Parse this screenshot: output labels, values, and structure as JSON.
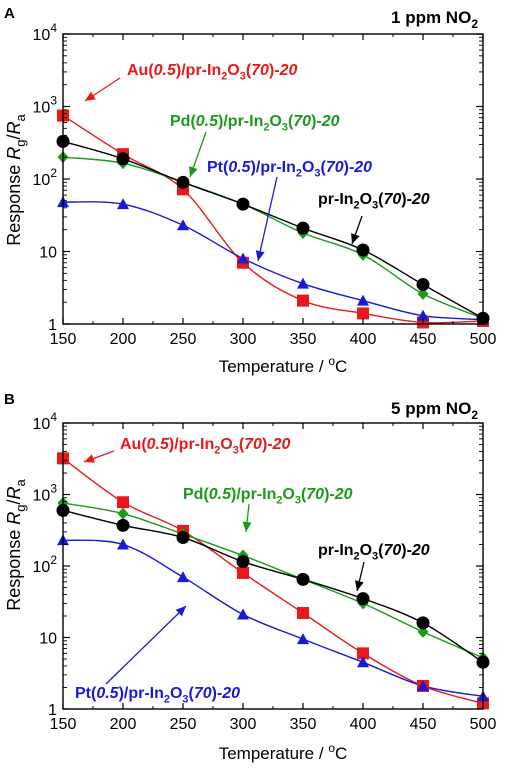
{
  "chart_data": [
    {
      "panel": "A",
      "type": "line",
      "title": "1 ppm NO",
      "title_sub": "2",
      "xlabel": "Temperature / ",
      "xlabel_sup": "o",
      "xlabel_tail": "C",
      "ylabel_main": "Response ",
      "ylabel_R1": "R",
      "ylabel_sub1": "g",
      "ylabel_slash": "/",
      "ylabel_R2": "R",
      "ylabel_sub2": "a",
      "xlim": [
        150,
        500
      ],
      "ylim": [
        1,
        10000
      ],
      "yscale": "log",
      "x": [
        150,
        200,
        250,
        300,
        350,
        400,
        450,
        500
      ],
      "x_ticks": [
        "150",
        "200",
        "250",
        "300",
        "350",
        "400",
        "450",
        "500"
      ],
      "y_ticks": [
        {
          "value": 1,
          "base": "1",
          "exp": ""
        },
        {
          "value": 10,
          "base": "10",
          "exp": ""
        },
        {
          "value": 100,
          "base": "10",
          "exp": "2"
        },
        {
          "value": 1000,
          "base": "10",
          "exp": "3"
        },
        {
          "value": 10000,
          "base": "10",
          "exp": "4"
        }
      ],
      "series": [
        {
          "color": "#e8191b",
          "marker": "square",
          "values": [
            750,
            220,
            72,
            7,
            2.1,
            1.4,
            1.05,
            1.1
          ],
          "label": [
            [
              "Au(",
              false,
              false
            ],
            [
              "0.5",
              true,
              false
            ],
            [
              ")/pr-In",
              false,
              false
            ],
            [
              "2",
              false,
              true
            ],
            [
              "O",
              false,
              false
            ],
            [
              "3",
              false,
              true
            ],
            [
              "(",
              false,
              false
            ],
            [
              "70",
              true,
              false
            ],
            [
              ")-",
              false,
              false
            ],
            [
              "20",
              true,
              false
            ]
          ]
        },
        {
          "color": "#1a9a1a",
          "marker": "diamond",
          "values": [
            200,
            165,
            90,
            45,
            18,
            9,
            2.6,
            1.2
          ],
          "label": [
            [
              "Pd(",
              false,
              false
            ],
            [
              "0.5",
              true,
              false
            ],
            [
              ")/pr-In",
              false,
              false
            ],
            [
              "2",
              false,
              true
            ],
            [
              "O",
              false,
              false
            ],
            [
              "3",
              false,
              true
            ],
            [
              "(",
              false,
              false
            ],
            [
              "70",
              true,
              false
            ],
            [
              ")-",
              false,
              false
            ],
            [
              "20",
              true,
              false
            ]
          ]
        },
        {
          "color": "#1a1ad6",
          "marker": "triangle",
          "values": [
            48,
            45,
            23,
            8,
            3.6,
            2.1,
            1.3,
            1.15
          ],
          "label": [
            [
              "Pt(",
              false,
              false
            ],
            [
              "0.5",
              true,
              false
            ],
            [
              ")/pr-In",
              false,
              false
            ],
            [
              "2",
              false,
              true
            ],
            [
              "O",
              false,
              false
            ],
            [
              "3",
              false,
              true
            ],
            [
              "(",
              false,
              false
            ],
            [
              "70",
              true,
              false
            ],
            [
              ")-",
              false,
              false
            ],
            [
              "20",
              true,
              false
            ]
          ]
        },
        {
          "color": "#000000",
          "marker": "circle",
          "values": [
            330,
            190,
            90,
            45,
            21,
            10.5,
            3.5,
            1.2
          ],
          "label": [
            [
              "pr-In",
              false,
              false
            ],
            [
              "2",
              false,
              true
            ],
            [
              "O",
              false,
              false
            ],
            [
              "3",
              false,
              true
            ],
            [
              "(",
              false,
              false
            ],
            [
              "70",
              true,
              false
            ],
            [
              ")-",
              false,
              false
            ],
            [
              "20",
              true,
              false
            ]
          ]
        }
      ]
    },
    {
      "panel": "B",
      "type": "line",
      "title": "5 ppm NO",
      "title_sub": "2",
      "xlabel": "Temperature / ",
      "xlabel_sup": "o",
      "xlabel_tail": "C",
      "ylabel_main": "Response ",
      "ylabel_R1": "R",
      "ylabel_sub1": "g",
      "ylabel_slash": "/",
      "ylabel_R2": "R",
      "ylabel_sub2": "a",
      "xlim": [
        150,
        500
      ],
      "ylim": [
        1,
        10000
      ],
      "yscale": "log",
      "x": [
        150,
        200,
        250,
        300,
        350,
        400,
        450,
        500
      ],
      "x_ticks": [
        "150",
        "200",
        "250",
        "300",
        "350",
        "400",
        "450",
        "500"
      ],
      "y_ticks": [
        {
          "value": 1,
          "base": "1",
          "exp": ""
        },
        {
          "value": 10,
          "base": "10",
          "exp": ""
        },
        {
          "value": 100,
          "base": "10",
          "exp": "2"
        },
        {
          "value": 1000,
          "base": "10",
          "exp": "3"
        },
        {
          "value": 10000,
          "base": "10",
          "exp": "4"
        }
      ],
      "series": [
        {
          "color": "#e8191b",
          "marker": "square",
          "values": [
            3200,
            780,
            310,
            80,
            22,
            6,
            2.1,
            1.2
          ],
          "label": [
            [
              "Au(",
              false,
              false
            ],
            [
              "0.5",
              true,
              false
            ],
            [
              ")/pr-In",
              false,
              false
            ],
            [
              "2",
              false,
              true
            ],
            [
              "O",
              false,
              false
            ],
            [
              "3",
              false,
              true
            ],
            [
              "(",
              false,
              false
            ],
            [
              "70",
              true,
              false
            ],
            [
              ")-",
              false,
              false
            ],
            [
              "20",
              true,
              false
            ]
          ]
        },
        {
          "color": "#1a9a1a",
          "marker": "diamond",
          "values": [
            760,
            540,
            280,
            140,
            65,
            30,
            12,
            5.2
          ],
          "label": [
            [
              "Pd(",
              false,
              false
            ],
            [
              "0.5",
              true,
              false
            ],
            [
              ")/pr-In",
              false,
              false
            ],
            [
              "2",
              false,
              true
            ],
            [
              "O",
              false,
              false
            ],
            [
              "3",
              false,
              true
            ],
            [
              "(",
              false,
              false
            ],
            [
              "70",
              true,
              false
            ],
            [
              ")-",
              false,
              false
            ],
            [
              "20",
              true,
              false
            ]
          ]
        },
        {
          "color": "#1a1ad6",
          "marker": "triangle",
          "values": [
            230,
            200,
            70,
            21,
            9.5,
            4.5,
            2.1,
            1.5
          ],
          "label": [
            [
              "Pt(",
              false,
              false
            ],
            [
              "0.5",
              true,
              false
            ],
            [
              ")/pr-In",
              false,
              false
            ],
            [
              "2",
              false,
              true
            ],
            [
              "O",
              false,
              false
            ],
            [
              "3",
              false,
              true
            ],
            [
              "(",
              false,
              false
            ],
            [
              "70",
              true,
              false
            ],
            [
              ")-",
              false,
              false
            ],
            [
              "20",
              true,
              false
            ]
          ]
        },
        {
          "color": "#000000",
          "marker": "circle",
          "values": [
            600,
            370,
            250,
            115,
            65,
            35,
            16,
            4.5
          ],
          "label": [
            [
              "pr-In",
              false,
              false
            ],
            [
              "2",
              false,
              true
            ],
            [
              "O",
              false,
              false
            ],
            [
              "3",
              false,
              true
            ],
            [
              "(",
              false,
              false
            ],
            [
              "70",
              true,
              false
            ],
            [
              ")-",
              false,
              false
            ],
            [
              "20",
              true,
              false
            ]
          ]
        }
      ]
    }
  ]
}
